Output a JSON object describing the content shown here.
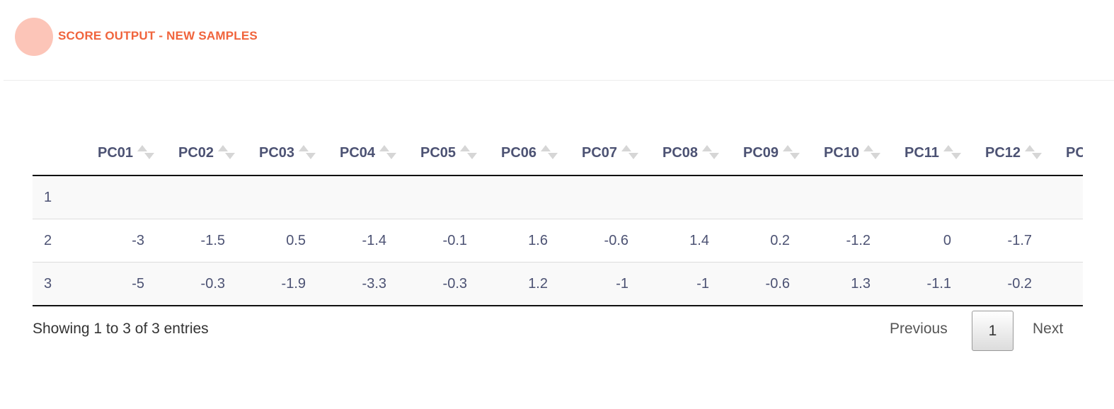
{
  "header": {
    "title": "SCORE OUTPUT - NEW SAMPLES"
  },
  "table": {
    "columns": [
      "PC01",
      "PC02",
      "PC03",
      "PC04",
      "PC05",
      "PC06",
      "PC07",
      "PC08",
      "PC09",
      "PC10",
      "PC11",
      "PC12",
      "PC"
    ],
    "rows": [
      [
        "1"
      ],
      [
        "2",
        "-3",
        "-1.5",
        "0.5",
        "-1.4",
        "-0.1",
        "1.6",
        "-0.6",
        "1.4",
        "0.2",
        "-1.2",
        "0",
        "-1.7"
      ],
      [
        "3",
        "-5",
        "-0.3",
        "-1.9",
        "-3.3",
        "-0.3",
        "1.2",
        "-1",
        "-1",
        "-0.6",
        "1.3",
        "-1.1",
        "-0.2"
      ]
    ]
  },
  "footer": {
    "info": "Showing 1 to 3 of 3 entries",
    "pagination": {
      "previous": "Previous",
      "page": "1",
      "next": "Next"
    }
  }
}
